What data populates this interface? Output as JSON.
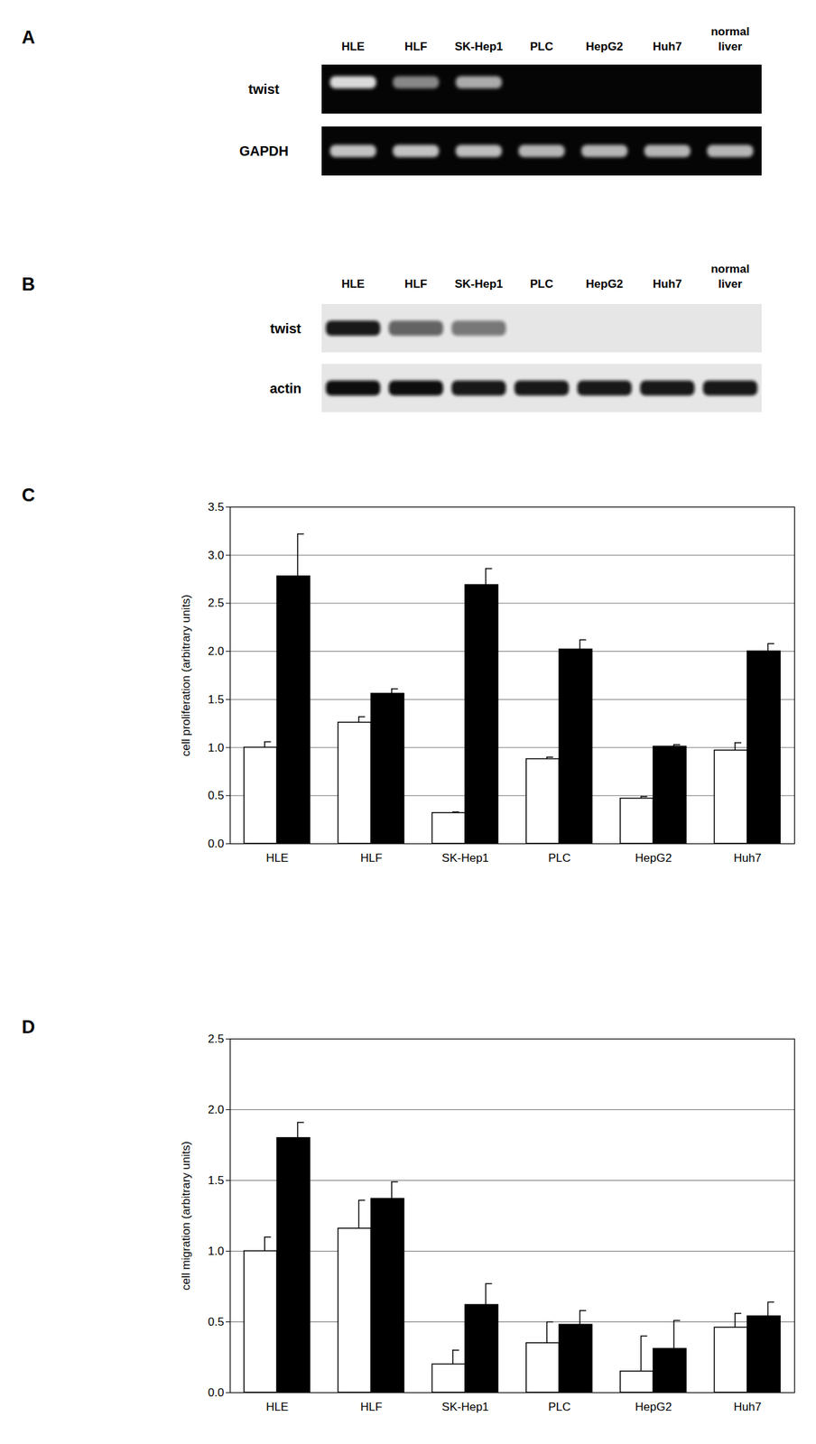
{
  "chart_data": [
    {
      "type": "gel",
      "title": "A",
      "categories": [
        "HLE",
        "HLF",
        "SK-Hep1",
        "PLC",
        "HepG2",
        "Huh7",
        "normal liver"
      ],
      "series": [
        {
          "name": "twist",
          "values": [
            0.9,
            0.55,
            0.7,
            0,
            0,
            0,
            0
          ]
        },
        {
          "name": "GAPDH",
          "values": [
            0.8,
            0.8,
            0.78,
            0.75,
            0.75,
            0.75,
            0.75
          ]
        }
      ]
    },
    {
      "type": "blot",
      "title": "B",
      "categories": [
        "HLE",
        "HLF",
        "SK-Hep1",
        "PLC",
        "HepG2",
        "Huh7",
        "normal liver"
      ],
      "series": [
        {
          "name": "twist",
          "values": [
            0.95,
            0.6,
            0.5,
            0,
            0,
            0,
            0
          ]
        },
        {
          "name": "actin",
          "values": [
            1,
            1,
            0.95,
            0.95,
            0.95,
            0.95,
            0.95
          ]
        }
      ]
    },
    {
      "type": "bar",
      "title": "C",
      "categories": [
        "HLE",
        "HLF",
        "SK-Hep1",
        "PLC",
        "HepG2",
        "Huh7"
      ],
      "ylabel": "cell proliferation (arbitrary units)",
      "ylim": [
        0,
        3.5
      ],
      "yticks": [
        0,
        0.5,
        1,
        1.5,
        2,
        2.5,
        3,
        3.5
      ],
      "grid": true,
      "series": [
        {
          "color": "#ffffff",
          "values": [
            1.0,
            1.26,
            0.32,
            0.88,
            0.47,
            0.97
          ],
          "error": [
            0.06,
            0.06,
            0.01,
            0.02,
            0.02,
            0.08
          ]
        },
        {
          "color": "#000000",
          "values": [
            2.78,
            1.56,
            2.69,
            2.02,
            1.01,
            2.0
          ],
          "error": [
            0.44,
            0.05,
            0.17,
            0.1,
            0.02,
            0.08
          ]
        }
      ]
    },
    {
      "type": "bar",
      "title": "D",
      "categories": [
        "HLE",
        "HLF",
        "SK-Hep1",
        "PLC",
        "HepG2",
        "Huh7"
      ],
      "ylabel": "cell migration (arbitrary units)",
      "ylim": [
        0,
        2.5
      ],
      "yticks": [
        0,
        0.5,
        1,
        1.5,
        2,
        2.5
      ],
      "grid": true,
      "series": [
        {
          "color": "#ffffff",
          "values": [
            1.0,
            1.16,
            0.2,
            0.35,
            0.15,
            0.46
          ],
          "error": [
            0.1,
            0.2,
            0.1,
            0.15,
            0.25,
            0.1
          ]
        },
        {
          "color": "#000000",
          "values": [
            1.8,
            1.37,
            0.62,
            0.48,
            0.31,
            0.54
          ],
          "error": [
            0.11,
            0.12,
            0.15,
            0.1,
            0.2,
            0.1
          ]
        }
      ]
    }
  ]
}
